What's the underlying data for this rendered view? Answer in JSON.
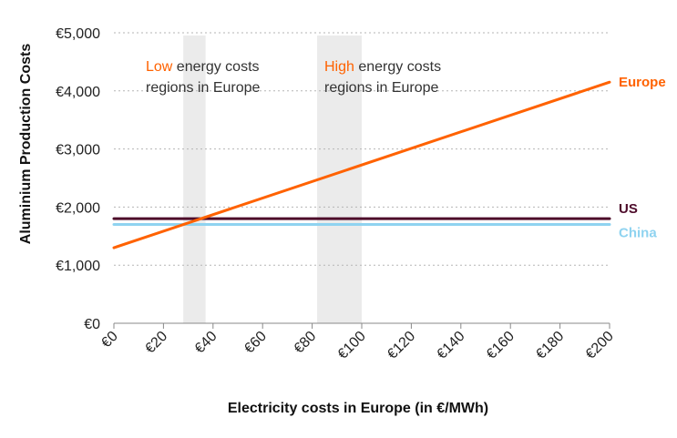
{
  "chart_data": {
    "type": "line",
    "title": "",
    "xlabel": "Electricity costs in Europe (in €/MWh)",
    "ylabel": "Aluminium Production Costs",
    "xlim": [
      0,
      200
    ],
    "ylim": [
      0,
      5000
    ],
    "x_ticks": [
      0,
      20,
      40,
      60,
      80,
      100,
      120,
      140,
      160,
      180,
      200
    ],
    "x_tick_labels": [
      "€0",
      "€20",
      "€40",
      "€60",
      "€80",
      "€100",
      "€120",
      "€140",
      "€160",
      "€180",
      "€200"
    ],
    "y_ticks": [
      0,
      1000,
      2000,
      3000,
      4000,
      5000
    ],
    "y_tick_labels": [
      "€0",
      "€1,000",
      "€2,000",
      "€3,000",
      "€4,000",
      "€5,000"
    ],
    "grid": "horizontal dashed",
    "series": [
      {
        "name": "Europe",
        "color": "#ff6200",
        "x": [
          0,
          200
        ],
        "y": [
          1300,
          4150
        ]
      },
      {
        "name": "US",
        "color": "#4d0a2a",
        "x": [
          0,
          200
        ],
        "y": [
          1800,
          1800
        ]
      },
      {
        "name": "China",
        "color": "#8fd3f0",
        "x": [
          0,
          200
        ],
        "y": [
          1700,
          1700
        ]
      }
    ],
    "bands": [
      {
        "x_from": 28,
        "x_to": 37,
        "color": "#ebebeb",
        "label_prefix": "Low",
        "label_rest": " energy costs",
        "label_line2": "regions in Europe",
        "prefix_color": "#ff6200"
      },
      {
        "x_from": 82,
        "x_to": 100,
        "color": "#ebebeb",
        "label_prefix": "High",
        "label_rest": " energy costs",
        "label_line2": "regions in Europe",
        "prefix_color": "#ff6200"
      }
    ]
  }
}
